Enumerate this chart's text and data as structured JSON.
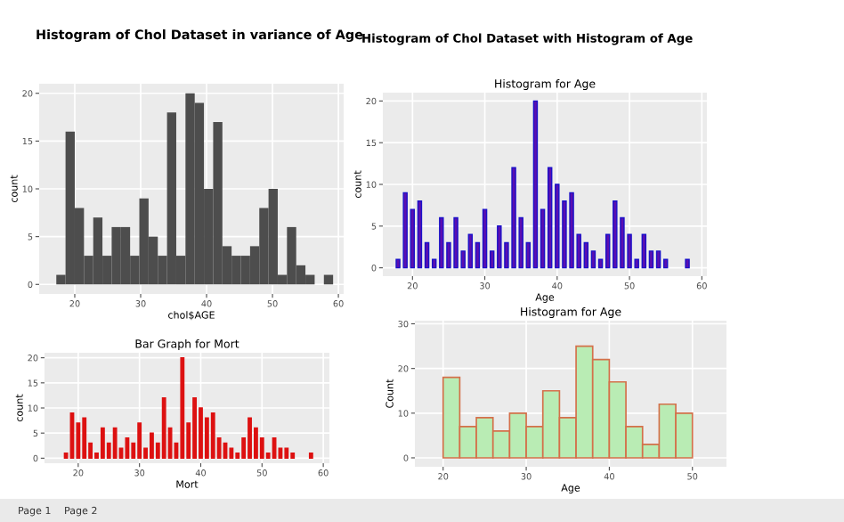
{
  "chart_data": [
    {
      "type": "histogram",
      "title": "Histogram of Chol Dataset in variance of Age",
      "xlabel": "chol$AGE",
      "ylabel": "count",
      "bins": [
        17.2,
        18.6,
        20.0,
        21.4,
        22.8,
        24.2,
        25.6,
        27.0,
        28.4,
        29.8,
        31.2,
        32.6,
        34.0,
        35.4,
        36.8,
        38.2,
        39.6,
        41.0,
        42.4,
        43.8,
        45.2,
        46.6,
        48.0,
        49.4,
        50.8,
        52.2,
        53.6,
        55.0,
        56.4,
        57.8,
        59.2
      ],
      "values": [
        1,
        16,
        8,
        3,
        7,
        3,
        6,
        6,
        3,
        9,
        5,
        3,
        18,
        3,
        20,
        19,
        10,
        17,
        4,
        3,
        3,
        4,
        8,
        10,
        1,
        6,
        2,
        1,
        0,
        1
      ],
      "color": "#4d4d4d",
      "xlim": [
        14.6,
        60.8
      ],
      "ylim": [
        -1,
        21
      ],
      "xticks": [
        20,
        30,
        40,
        50,
        60
      ],
      "yticks": [
        0,
        5,
        10,
        15,
        20
      ],
      "grid": true
    },
    {
      "type": "bar",
      "title": "Histogram for Age",
      "xlabel": "Age",
      "ylabel": "count",
      "annotations": [
        "Histogram of Chol Dataset with Histogram of Age"
      ],
      "x": [
        18,
        19,
        20,
        21,
        22,
        23,
        24,
        25,
        26,
        27,
        28,
        29,
        30,
        31,
        32,
        33,
        34,
        35,
        36,
        37,
        38,
        39,
        40,
        41,
        42,
        43,
        44,
        45,
        46,
        47,
        48,
        49,
        50,
        51,
        52,
        53,
        54,
        55,
        58
      ],
      "values": [
        1,
        9,
        7,
        8,
        3,
        1,
        6,
        3,
        6,
        2,
        4,
        3,
        7,
        2,
        5,
        3,
        12,
        6,
        3,
        20,
        7,
        12,
        10,
        8,
        9,
        4,
        3,
        2,
        1,
        4,
        8,
        6,
        4,
        1,
        4,
        2,
        2,
        1,
        1
      ],
      "color": "#5a0fb0",
      "xlim": [
        15.9,
        60.7
      ],
      "ylim": [
        -1,
        21
      ],
      "xticks": [
        20,
        30,
        40,
        50,
        60
      ],
      "yticks": [
        0,
        5,
        10,
        15,
        20
      ],
      "grid": true
    },
    {
      "type": "bar",
      "title": "Bar Graph for Mort",
      "xlabel": "Mort",
      "ylabel": "count",
      "annotations": [
        "Page 1",
        "Page 2"
      ],
      "x": [
        18,
        19,
        20,
        21,
        22,
        23,
        24,
        25,
        26,
        27,
        28,
        29,
        30,
        31,
        32,
        33,
        34,
        35,
        36,
        37,
        38,
        39,
        40,
        41,
        42,
        43,
        44,
        45,
        46,
        47,
        48,
        49,
        50,
        51,
        52,
        53,
        54,
        55,
        58
      ],
      "values": [
        1,
        9,
        7,
        8,
        3,
        1,
        6,
        3,
        6,
        2,
        4,
        3,
        7,
        2,
        5,
        3,
        12,
        6,
        3,
        20,
        7,
        12,
        10,
        8,
        9,
        4,
        3,
        2,
        1,
        4,
        8,
        6,
        4,
        1,
        4,
        2,
        2,
        1,
        1
      ],
      "color": "#dd1111",
      "xlim": [
        14.5,
        61
      ],
      "ylim": [
        -1,
        21
      ],
      "xticks": [
        20,
        30,
        40,
        50,
        60
      ],
      "yticks": [
        0,
        5,
        10,
        15,
        20
      ],
      "grid": true
    },
    {
      "type": "histogram",
      "title": "Histogram for Age",
      "xlabel": "Age",
      "ylabel": "Count",
      "bins": [
        20,
        22,
        24,
        26,
        28,
        30,
        32,
        34,
        36,
        38,
        40,
        42,
        44,
        46,
        48,
        50
      ],
      "values": [
        18,
        7,
        9,
        6,
        10,
        7,
        15,
        9,
        25,
        22,
        17,
        7,
        3,
        12,
        10
      ],
      "color": "#b9ecb4",
      "xlim": [
        16.6,
        54.1
      ],
      "ylim": [
        -2,
        30.7
      ],
      "xticks": [
        20,
        30,
        40,
        50
      ],
      "yticks": [
        0,
        10,
        20,
        30
      ],
      "grid": true
    }
  ]
}
